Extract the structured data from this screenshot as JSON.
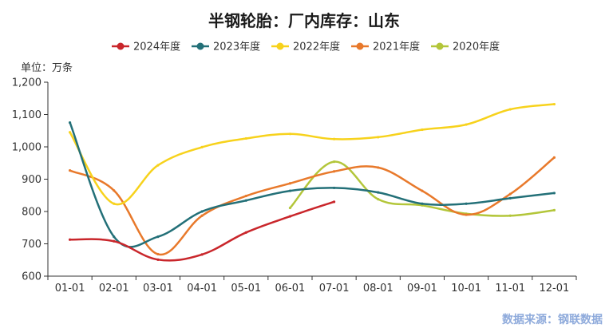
{
  "chart_data": {
    "type": "line",
    "title": "半钢轮胎：厂内库存：山东",
    "unit_label": "单位：万条",
    "source": "数据来源：钢联数据",
    "categories": [
      "01-01",
      "02-01",
      "03-01",
      "04-01",
      "05-01",
      "06-01",
      "07-01",
      "08-01",
      "09-01",
      "10-01",
      "11-01",
      "12-01"
    ],
    "ylim": [
      600,
      1200
    ],
    "yticks": [
      "600",
      "700",
      "800",
      "900",
      "1,000",
      "1,100",
      "1,200"
    ],
    "ytick_values": [
      600,
      700,
      800,
      900,
      1000,
      1100,
      1200
    ],
    "legend_position": "top",
    "series": [
      {
        "name": "2024年度",
        "color": "#c9262b",
        "values": [
          713,
          708,
          651,
          667,
          735,
          785,
          830,
          null,
          null,
          null,
          null,
          null
        ]
      },
      {
        "name": "2023年度",
        "color": "#237078",
        "values": [
          1075,
          722,
          722,
          800,
          834,
          864,
          873,
          859,
          824,
          824,
          841,
          857
        ]
      },
      {
        "name": "2022年度",
        "color": "#f7d21c",
        "values": [
          1045,
          824,
          943,
          999,
          1026,
          1040,
          1024,
          1030,
          1053,
          1069,
          1116,
          1132
        ]
      },
      {
        "name": "2021年度",
        "color": "#e8792b",
        "values": [
          927,
          865,
          668,
          787,
          848,
          887,
          924,
          936,
          864,
          790,
          854,
          967
        ]
      },
      {
        "name": "2020年度",
        "color": "#b3c63a",
        "values": [
          null,
          null,
          null,
          null,
          null,
          811,
          954,
          838,
          819,
          793,
          787,
          804
        ]
      }
    ]
  }
}
